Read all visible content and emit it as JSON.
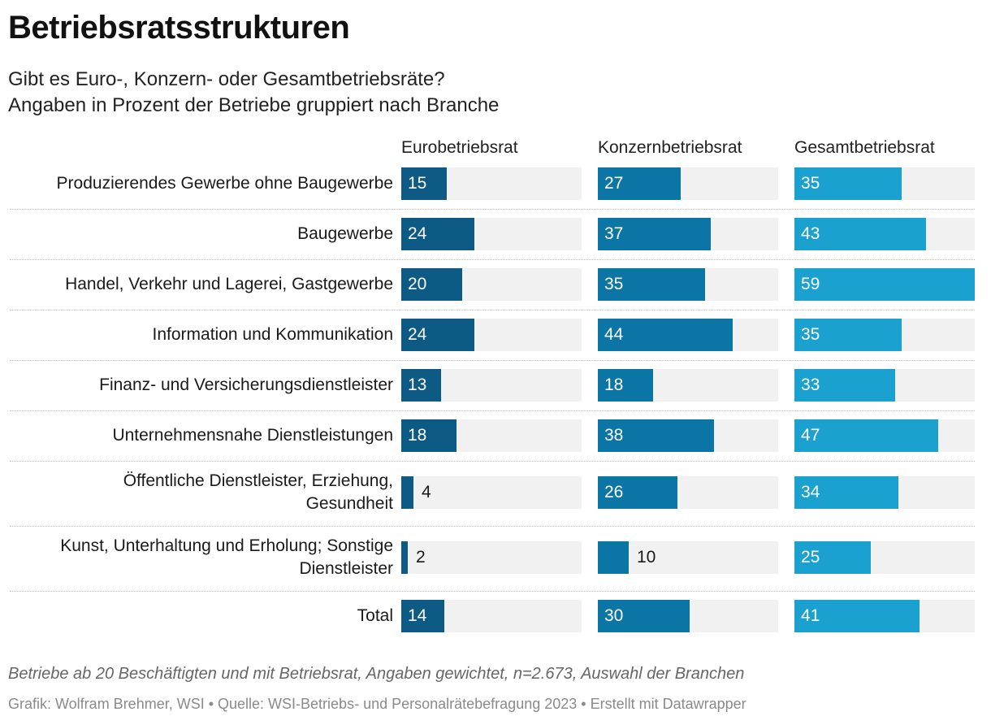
{
  "header": {
    "title": "Betriebsratsstrukturen",
    "subtitle_line1": "Gibt es Euro-, Konzern- oder Gesamtbetriebsräte?",
    "subtitle_line2": "Angaben in Prozent der Betriebe gruppiert nach Branche"
  },
  "chart_data": {
    "type": "bar",
    "orientation": "horizontal",
    "layout": "small-multiples",
    "xlim": [
      0,
      59
    ],
    "grid": false,
    "categories": [
      "Produzierendes Gewerbe ohne Baugewerbe",
      "Baugewerbe",
      "Handel, Verkehr und Lagerei, Gastgewerbe",
      "Information und Kommunikation",
      "Finanz- und Versicherungsdienstleister",
      "Unternehmensnahe Dienstleistungen",
      "Öffentliche Dienstleister, Erziehung, Gesundheit",
      "Kunst, Unterhaltung und Erholung; Sonstige Dienstleister",
      "Total"
    ],
    "category_lines": [
      [
        "Produzierendes Gewerbe ohne Baugewerbe"
      ],
      [
        "Baugewerbe"
      ],
      [
        "Handel, Verkehr und Lagerei, Gastgewerbe"
      ],
      [
        "Information und Kommunikation"
      ],
      [
        "Finanz- und Versicherungsdienstleister"
      ],
      [
        "Unternehmensnahe Dienstleistungen"
      ],
      [
        "Öffentliche Dienstleister, Erziehung,",
        "Gesundheit"
      ],
      [
        "Kunst, Unterhaltung und Erholung; Sonstige",
        "Dienstleister"
      ],
      [
        "Total"
      ]
    ],
    "series": [
      {
        "name": "Eurobetriebsrat",
        "color": "#0d5a85",
        "values": [
          15,
          24,
          20,
          24,
          13,
          18,
          4,
          2,
          14
        ]
      },
      {
        "name": "Konzernbetriebsrat",
        "color": "#0b76a6",
        "values": [
          27,
          37,
          35,
          44,
          18,
          38,
          26,
          10,
          30
        ]
      },
      {
        "name": "Gesamtbetriebsrat",
        "color": "#1ba1d0",
        "values": [
          35,
          43,
          59,
          35,
          33,
          47,
          34,
          25,
          41
        ]
      }
    ]
  },
  "footer": {
    "note": "Betriebe ab 20 Beschäftigten und mit Betriebsrat, Angaben gewichtet, n=2.673, Auswahl der Branchen",
    "credit": "Grafik: Wolfram Brehmer, WSI • Quelle: WSI-Betriebs- und Personalrätebefragung 2023 • Erstellt mit Datawrapper"
  }
}
